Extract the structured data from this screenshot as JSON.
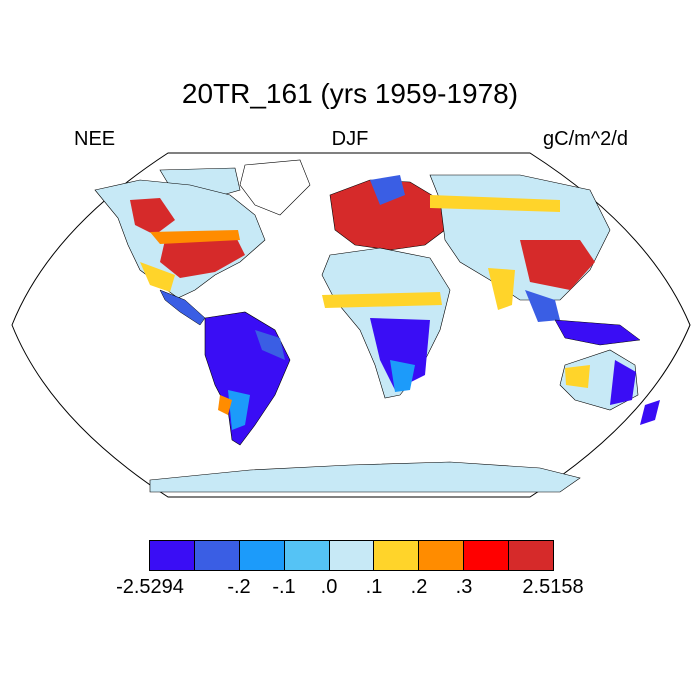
{
  "header": {
    "title": "20TR_161 (yrs 1959-1978)",
    "left_label": "NEE",
    "center_label": "DJF",
    "right_label": "gC/m^2/d"
  },
  "colorbar": {
    "colors": [
      "#3a0df5",
      "#3a5ee4",
      "#1c9bfa",
      "#55c3f5",
      "#c7e9f6",
      "#ffd42a",
      "#ff8c00",
      "#ff0000",
      "#d62a2a"
    ],
    "tick_labels": [
      "-2.5294",
      "-.2",
      "-.1",
      ".0",
      ".1",
      ".2",
      ".3",
      "2.5158"
    ]
  },
  "map": {
    "projection": "Robinson",
    "ocean_color": "#ffffff",
    "coastline_color": "#000000",
    "land_color": "#c7e9f6"
  }
}
